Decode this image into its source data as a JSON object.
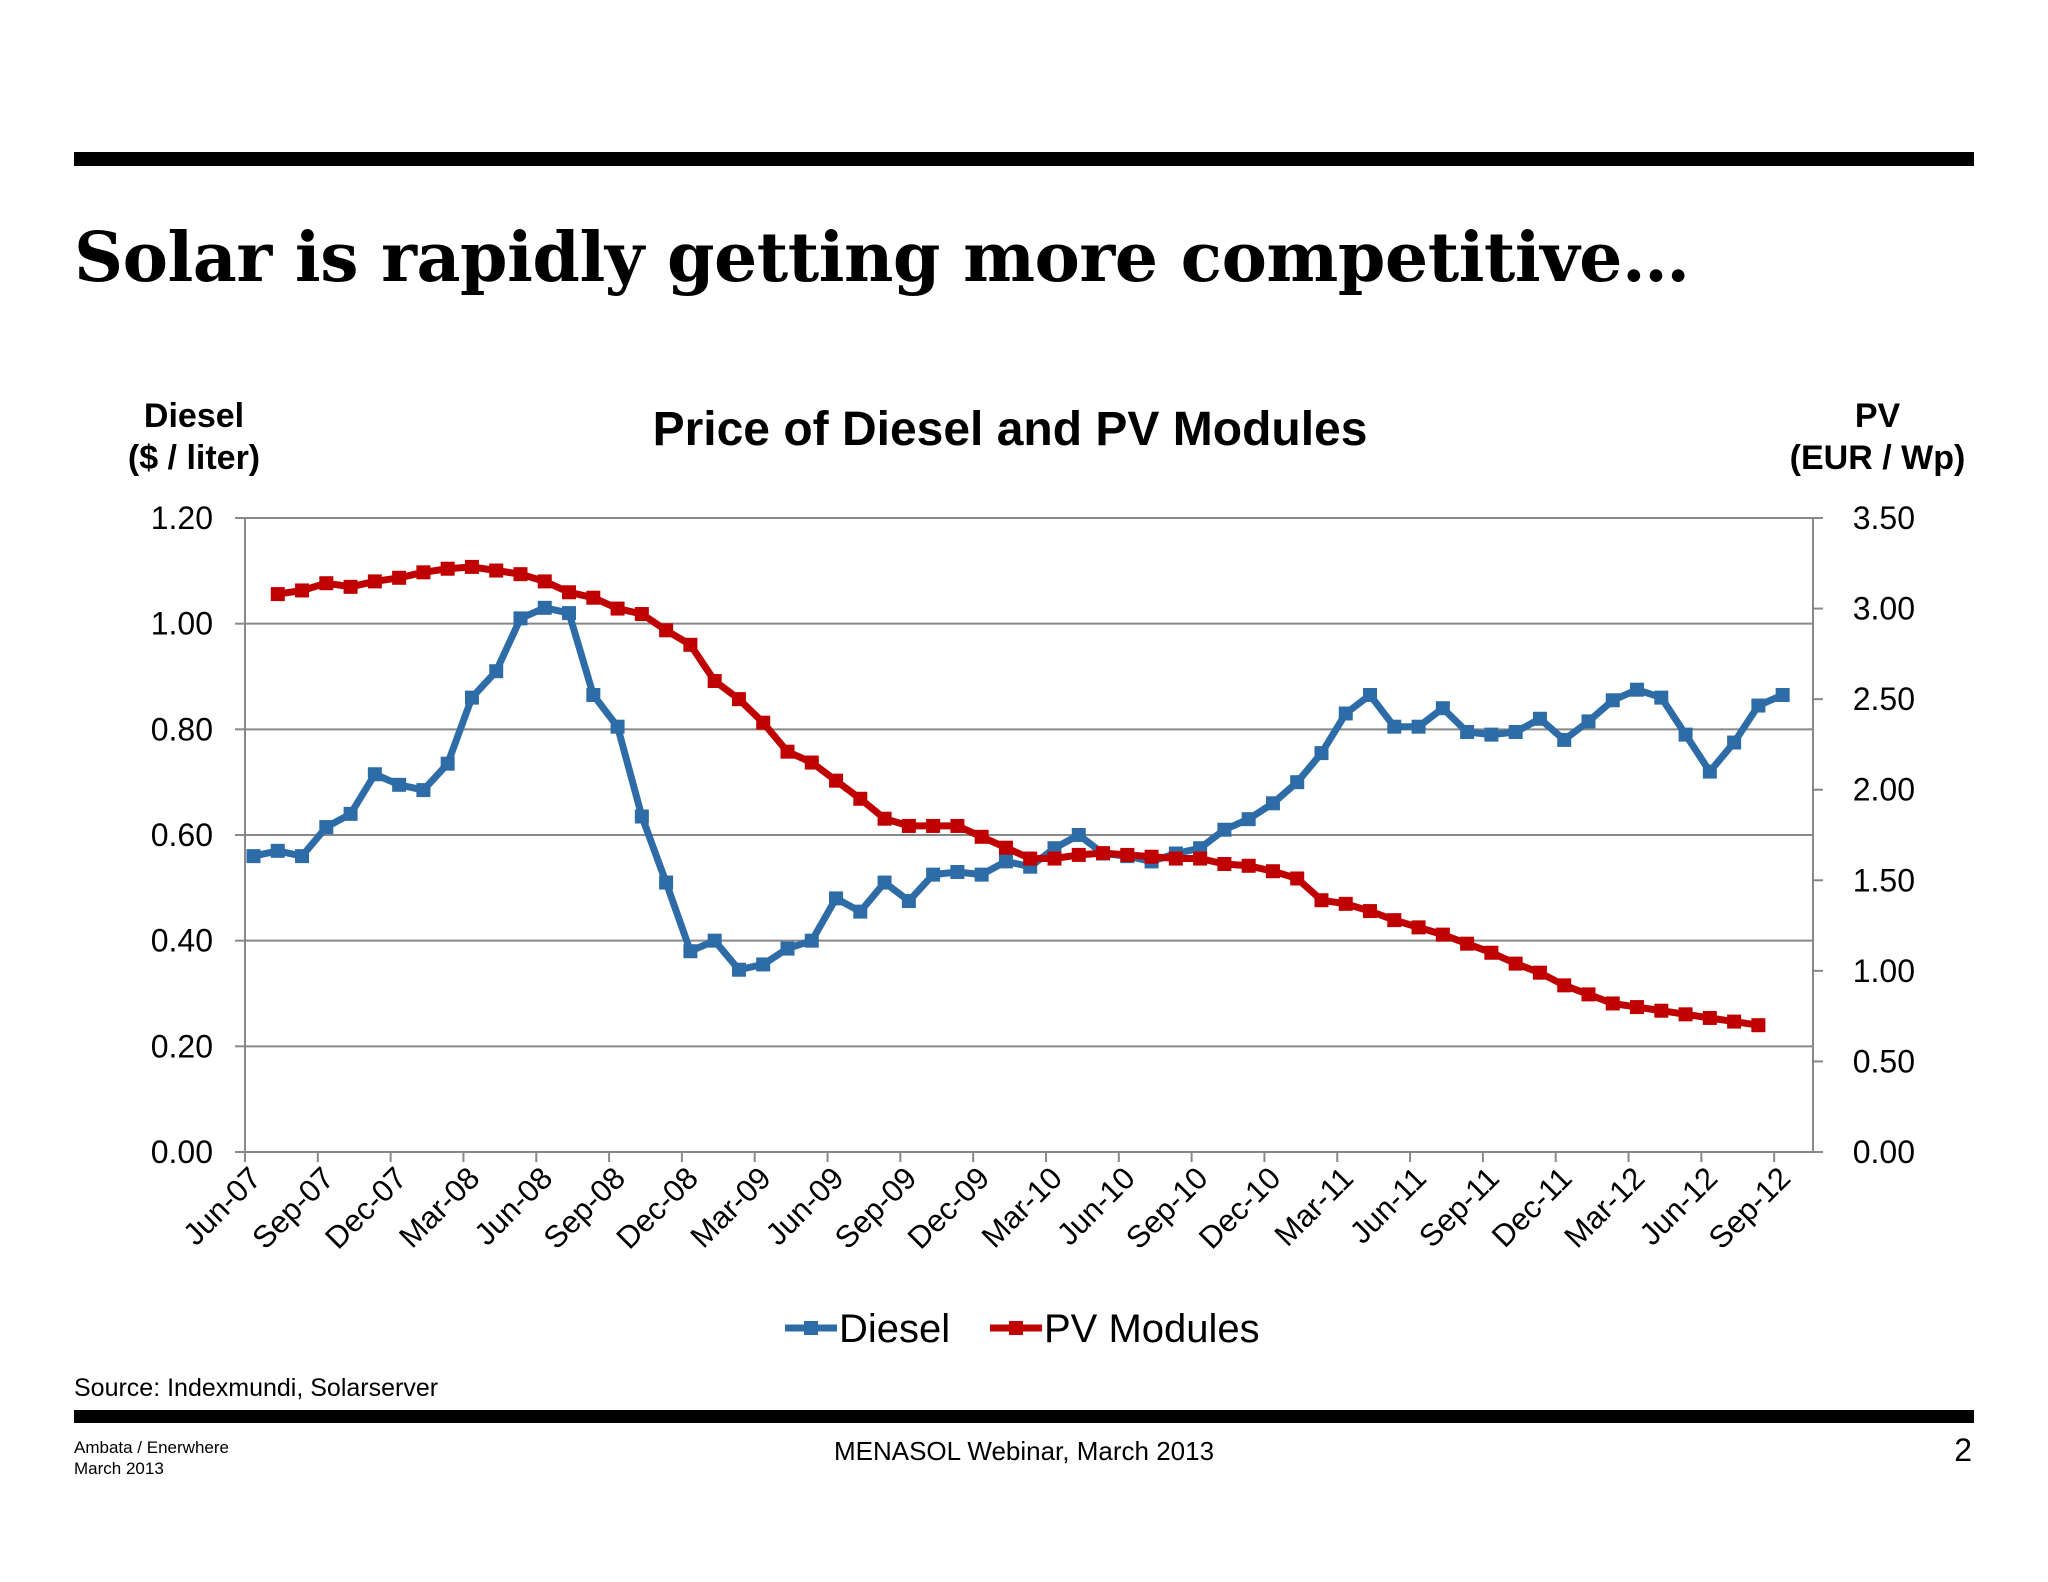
{
  "slide": {
    "title": "Solar is rapidly getting more competitive…",
    "source": "Source:  Indexmundi, Solarserver",
    "footer_left": [
      "Ambata / Enerwhere",
      "March 2013"
    ],
    "footer_center": "MENASOL Webinar, March 2013",
    "page_number": "2"
  },
  "colors": {
    "diesel": "#2e6ca8",
    "pv": "#c00000",
    "grid": "#888888"
  },
  "chart_data": {
    "type": "line",
    "title": "Price of Diesel and PV Modules",
    "left_axis": {
      "label": [
        "Diesel",
        "($ / liter)"
      ],
      "ylim": [
        0,
        1.2
      ],
      "ticks": [
        "0.00",
        "0.20",
        "0.40",
        "0.60",
        "0.80",
        "1.00",
        "1.20"
      ]
    },
    "right_axis": {
      "label": [
        "PV",
        "(EUR / Wp)"
      ],
      "ylim": [
        0,
        3.5
      ],
      "ticks": [
        "0.00",
        "0.50",
        "1.00",
        "1.50",
        "2.00",
        "2.50",
        "3.00",
        "3.50"
      ]
    },
    "x_tick_labels": [
      "Jun-07",
      "Sep-07",
      "Dec-07",
      "Mar-08",
      "Jun-08",
      "Sep-08",
      "Dec-08",
      "Mar-09",
      "Jun-09",
      "Sep-09",
      "Dec-09",
      "Mar-10",
      "Jun-10",
      "Sep-10",
      "Dec-10",
      "Mar-11",
      "Jun-11",
      "Sep-11",
      "Dec-11",
      "Mar-12",
      "Jun-12",
      "Sep-12"
    ],
    "legend_position": "bottom",
    "grid": true,
    "series": [
      {
        "name": "Diesel",
        "axis": "left",
        "start_month": 0,
        "values": [
          0.56,
          0.57,
          0.56,
          0.615,
          0.64,
          0.715,
          0.695,
          0.685,
          0.735,
          0.86,
          0.91,
          1.01,
          1.03,
          1.02,
          0.865,
          0.805,
          0.635,
          0.51,
          0.38,
          0.4,
          0.345,
          0.355,
          0.385,
          0.4,
          0.48,
          0.455,
          0.51,
          0.475,
          0.525,
          0.53,
          0.525,
          0.55,
          0.54,
          0.575,
          0.6,
          0.565,
          0.56,
          0.55,
          0.565,
          0.575,
          0.61,
          0.63,
          0.66,
          0.7,
          0.755,
          0.83,
          0.865,
          0.805,
          0.805,
          0.84,
          0.795,
          0.79,
          0.795,
          0.82,
          0.78,
          0.815,
          0.855,
          0.875,
          0.86,
          0.79,
          0.72,
          0.775,
          0.845,
          0.865
        ]
      },
      {
        "name": "PV Modules",
        "axis": "right",
        "start_month": 1,
        "values": [
          3.08,
          3.1,
          3.14,
          3.12,
          3.15,
          3.17,
          3.2,
          3.22,
          3.23,
          3.21,
          3.19,
          3.15,
          3.09,
          3.06,
          3.0,
          2.97,
          2.88,
          2.8,
          2.6,
          2.5,
          2.37,
          2.21,
          2.15,
          2.05,
          1.95,
          1.84,
          1.8,
          1.8,
          1.8,
          1.74,
          1.68,
          1.62,
          1.62,
          1.64,
          1.65,
          1.64,
          1.63,
          1.62,
          1.62,
          1.59,
          1.58,
          1.55,
          1.51,
          1.39,
          1.37,
          1.33,
          1.28,
          1.24,
          1.2,
          1.15,
          1.1,
          1.04,
          0.99,
          0.92,
          0.87,
          0.82,
          0.8,
          0.78,
          0.76,
          0.74,
          0.72,
          0.7
        ]
      }
    ]
  }
}
